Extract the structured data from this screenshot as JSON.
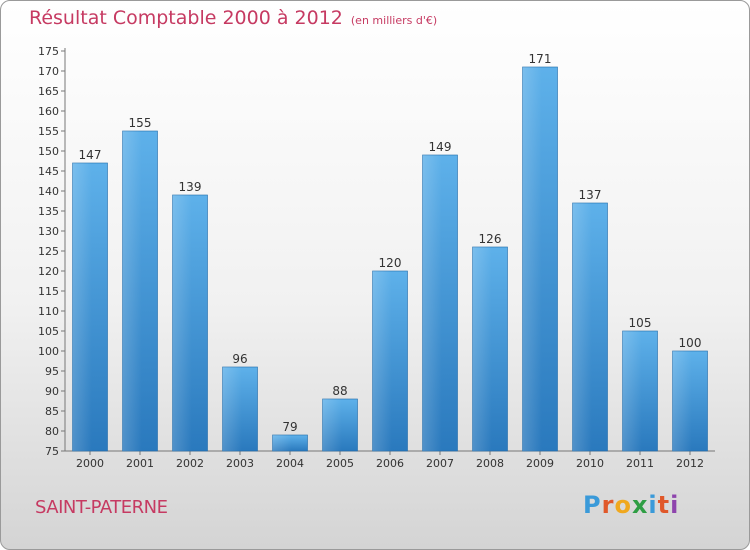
{
  "header": {
    "title": "Résultat Comptable 2000 à 2012",
    "subtitle": "(en milliers d'€)"
  },
  "footer": {
    "commune": "SAINT-PATERNE",
    "logo_text": "Proxiti",
    "logo_colors": [
      "#3a9ad9",
      "#e0582a",
      "#f0a81e",
      "#2f9e44",
      "#3a9ad9",
      "#e0582a",
      "#8e44ad"
    ]
  },
  "colors": {
    "bar_top": "#5eb1ea",
    "bar_bottom": "#2a79bd",
    "title": "#c63a62"
  },
  "chart_data": {
    "type": "bar",
    "title": "Résultat Comptable 2000 à 2012",
    "ylabel": "en milliers d'€",
    "categories": [
      "2000",
      "2001",
      "2002",
      "2003",
      "2004",
      "2005",
      "2006",
      "2007",
      "2008",
      "2009",
      "2010",
      "2011",
      "2012"
    ],
    "values": [
      147,
      155,
      139,
      96,
      79,
      88,
      120,
      149,
      126,
      171,
      137,
      105,
      100
    ],
    "ylim": [
      75,
      175
    ],
    "yticks": [
      75,
      80,
      85,
      90,
      95,
      100,
      105,
      110,
      115,
      120,
      125,
      130,
      135,
      140,
      145,
      150,
      155,
      160,
      165,
      170,
      175
    ],
    "grid": false
  }
}
